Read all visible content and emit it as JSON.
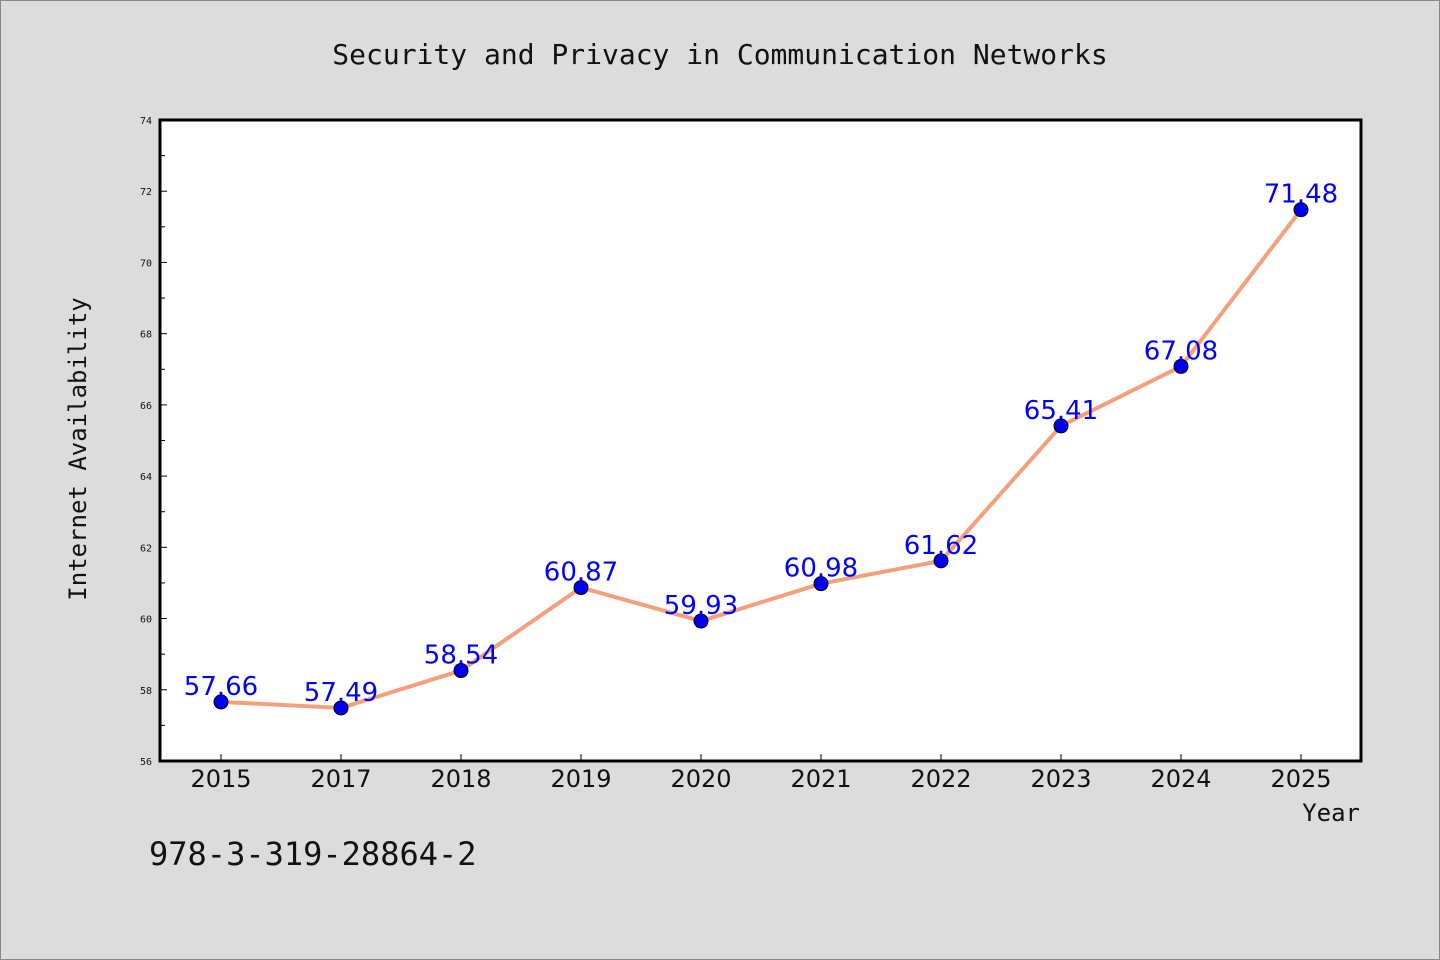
{
  "chart_data": {
    "type": "line",
    "title": "Security and Privacy in Communication Networks",
    "xlabel": "Year",
    "ylabel": "Internet Availability",
    "categories": [
      "2015",
      "2017",
      "2018",
      "2019",
      "2020",
      "2021",
      "2022",
      "2023",
      "2024",
      "2025"
    ],
    "series": [
      {
        "values": [
          57.66,
          57.49,
          58.54,
          60.87,
          59.93,
          60.98,
          61.62,
          65.41,
          67.08,
          71.48
        ],
        "data_labels": [
          "57.66",
          "57.49",
          "58.54",
          "60.87",
          "59.93",
          "60.98",
          "61.62",
          "65.41",
          "67.08",
          "71.48"
        ]
      }
    ],
    "ylim": [
      56,
      74
    ],
    "yticks": [
      "56",
      "58",
      "60",
      "62",
      "64",
      "66",
      "68",
      "70",
      "72",
      "74"
    ],
    "grid": false,
    "colors": {
      "line": "#f4a07c",
      "marker": "#0000ee",
      "label": "#0000ff"
    }
  },
  "footer": {
    "isbn": "978-3-319-28864-2"
  }
}
